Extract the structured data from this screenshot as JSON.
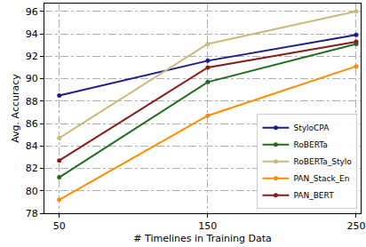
{
  "chart_data": {
    "type": "line",
    "x_label": "# Timelines in Training Data",
    "y_label": "Avg. Accuracy",
    "x": [
      50,
      150,
      250
    ],
    "xlim": [
      40,
      253
    ],
    "xticks": [
      50,
      150,
      250
    ],
    "ylim": [
      78,
      96.7
    ],
    "yticks": [
      78,
      80,
      82,
      84,
      86,
      88,
      90,
      92,
      94,
      96
    ],
    "grid": true,
    "legend": "lower right",
    "marker": "circle",
    "line_style": "solid",
    "series": [
      {
        "name": "StyloCPA",
        "color": "#1c1c8a",
        "values": [
          88.5,
          91.6,
          93.9
        ]
      },
      {
        "name": "RoBERTa",
        "color": "#1f6e1f",
        "values": [
          81.2,
          89.7,
          93.1
        ]
      },
      {
        "name": "RoBERTa_Stylo",
        "color": "#c9bb7c",
        "values": [
          84.7,
          93.1,
          96.0
        ]
      },
      {
        "name": "PAN_Stack_En",
        "color": "#ff8c00",
        "values": [
          79.2,
          86.7,
          91.1
        ]
      },
      {
        "name": "PAN_BERT",
        "color": "#8b1a1a",
        "values": [
          82.7,
          91.0,
          93.3
        ]
      }
    ]
  }
}
